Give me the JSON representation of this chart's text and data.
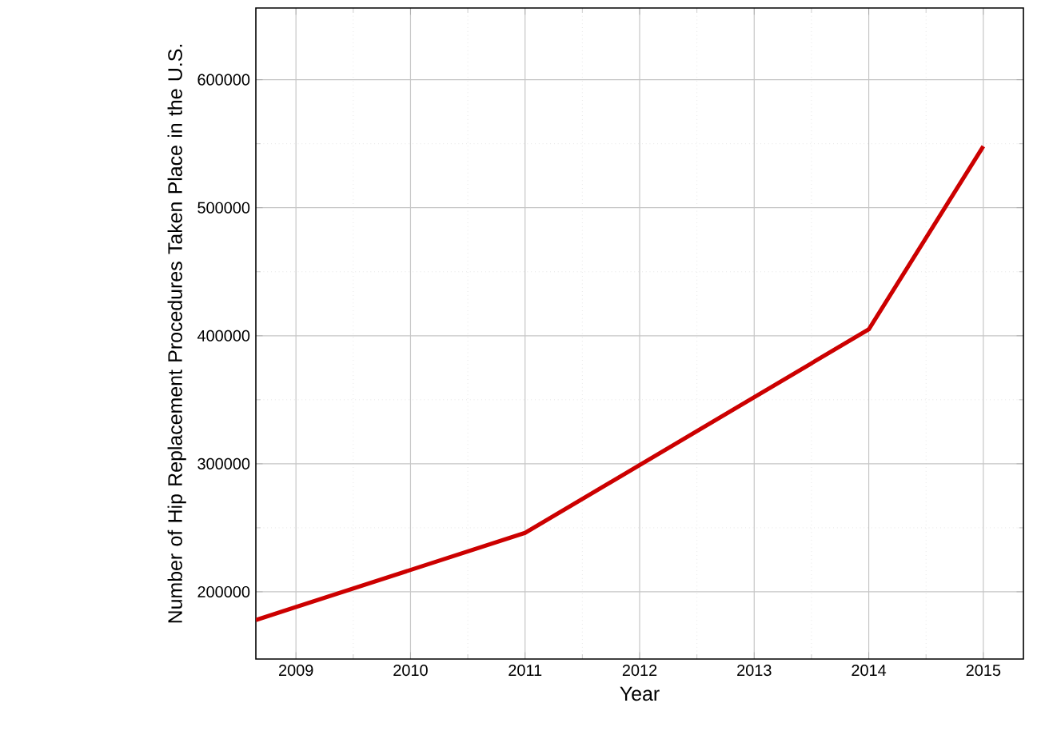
{
  "chart_data": {
    "type": "line",
    "xlabel": "Year",
    "ylabel": "Number of Hip Replacement Procedures Taken Place in the U.S.",
    "x": [
      2008.65,
      2011,
      2014,
      2015
    ],
    "series": [
      {
        "color": "#cc0000",
        "values": [
          178000,
          246000,
          405000,
          548000
        ]
      }
    ],
    "xlim": [
      2008.65,
      2015.35
    ],
    "xticks": [
      2009,
      2010,
      2011,
      2012,
      2013,
      2014,
      2015
    ],
    "ylim": [
      147500,
      656000
    ],
    "yticks": [
      200000,
      300000,
      400000,
      500000,
      600000
    ],
    "grid": true,
    "marker": "none",
    "line_style": "solid"
  }
}
